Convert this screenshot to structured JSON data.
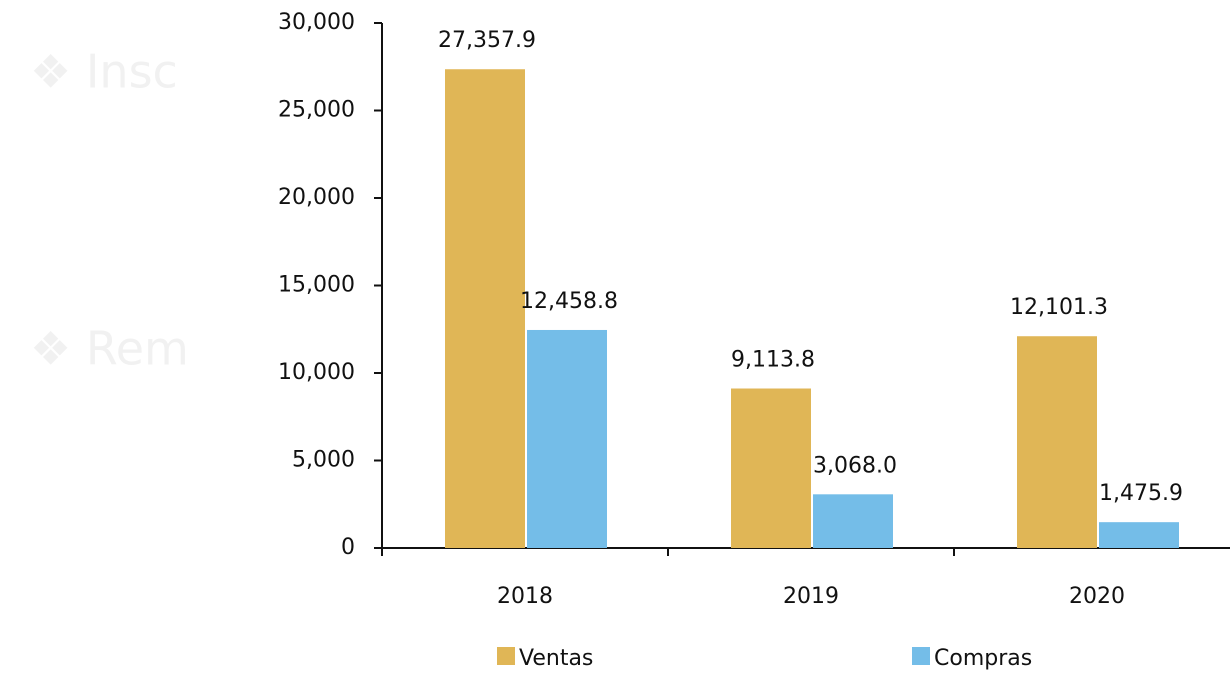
{
  "background_text": [
    "❖ Insc",
    "❖ Rem"
  ],
  "chart_data": {
    "type": "bar",
    "categories": [
      "2018",
      "2019",
      "2020"
    ],
    "series": [
      {
        "name": "Ventas",
        "color": "#e0b656",
        "values": [
          27357.9,
          9113.8,
          12101.3
        ],
        "value_labels": [
          "27,357.9",
          "9,113.8",
          "12,101.3"
        ]
      },
      {
        "name": "Compras",
        "color": "#74bde8",
        "values": [
          12458.8,
          3068.0,
          1475.9
        ],
        "value_labels": [
          "12,458.8",
          "3,068.0",
          "1,475.9"
        ]
      }
    ],
    "ylim": [
      0,
      30000
    ],
    "yticks": [
      0,
      {
        "value": 5000,
        "label": "5,000"
      },
      {
        "value": 10000,
        "label": "10,000"
      },
      {
        "value": 15000,
        "label": "15,000"
      },
      {
        "value": 20000,
        "label": "20,000"
      },
      {
        "value": 25000,
        "label": "25,000"
      },
      {
        "value": 30000,
        "label": "30,000"
      }
    ],
    "legend": "bottom"
  }
}
